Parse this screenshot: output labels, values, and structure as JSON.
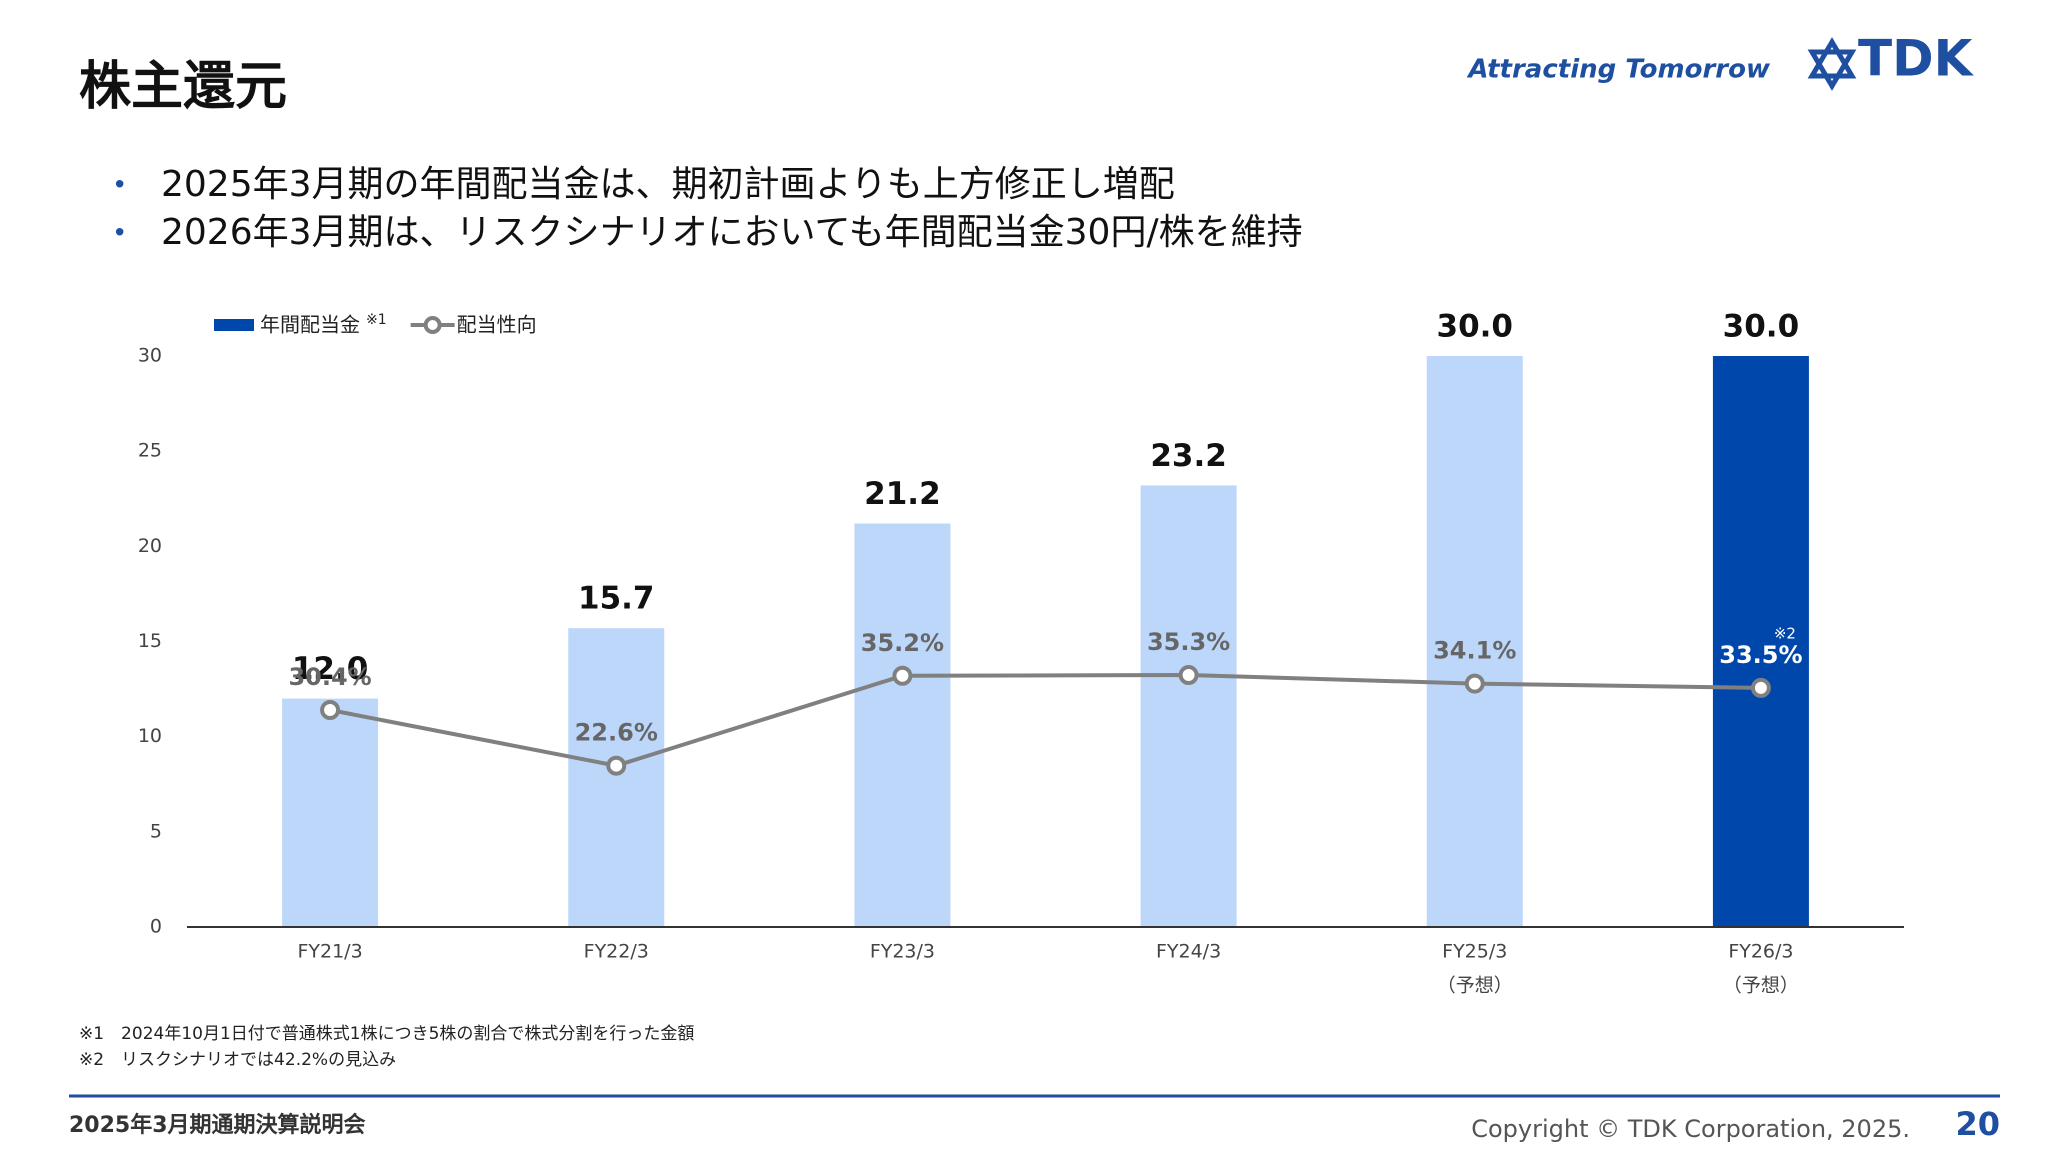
{
  "header": {
    "title": "株主還元",
    "tagline": "Attracting Tomorrow",
    "logo": "TDK"
  },
  "bullets": [
    "2025年3月期の年間配当金は、期初計画よりも上方修正し増配",
    "2026年3月期は、リスクシナリオにおいても年間配当金30円/株を維持"
  ],
  "chart_data": {
    "type": "bar",
    "categories": [
      "FY21/3",
      "FY22/3",
      "FY23/3",
      "FY24/3",
      "FY25/3",
      "FY26/3"
    ],
    "category_notes": [
      null,
      null,
      null,
      null,
      "（予想）",
      "（予想）"
    ],
    "series": [
      {
        "name": "年間配当金",
        "name_note": "※1",
        "type": "bar",
        "color": "#0047ab",
        "colors": [
          "#bdd7fb",
          "#bdd7fb",
          "#bdd7fb",
          "#bdd7fb",
          "#bdd7fb",
          "#0047ab"
        ],
        "values": [
          12,
          15.7,
          21.2,
          23.2,
          30,
          30
        ],
        "value_labels": [
          "12.0",
          "15.7",
          "21.2",
          "23.2",
          "30.0",
          "30.0"
        ]
      },
      {
        "name": "配当性向",
        "type": "line",
        "axis": "y2",
        "color": "#808080",
        "values": [
          30.4,
          22.6,
          35.2,
          35.3,
          34.1,
          33.5
        ],
        "value_labels": [
          "30.4%",
          "22.6%",
          "35.2%",
          "35.3%",
          "34.1%",
          "33.5%"
        ]
      }
    ],
    "annotations": [
      {
        "text": "※2"
      }
    ],
    "ylim": [
      0,
      30
    ],
    "yticks": [
      0,
      5,
      10,
      15,
      20,
      25,
      30
    ],
    "y2lim": [
      0,
      80
    ]
  },
  "footnotes": [
    "※1　2024年10月1日付で普通株式1株につき5株の割合で株式分割を行った金額",
    "※2　リスクシナリオでは42.2%の見込み"
  ],
  "footer": {
    "left": "2025年3月期通期決算説明会",
    "copyright": "Copyright © TDK Corporation, 2025.",
    "page": "20"
  }
}
